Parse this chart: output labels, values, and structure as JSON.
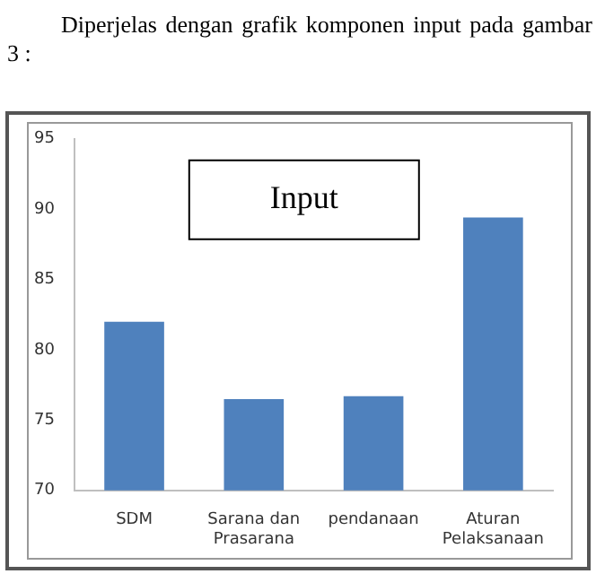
{
  "chart_data": {
    "type": "bar",
    "title": "Input",
    "annotations": [
      "Diperjelas dengan grafik komponen input pada gambar 3 :"
    ],
    "categories": [
      "SDM",
      "Sarana dan Prasarana",
      "pendanaan",
      "Aturan Pelaksanaan"
    ],
    "values": [
      82.0,
      76.5,
      76.7,
      89.4
    ],
    "color": "#4f81bd",
    "ylim": [
      70,
      95
    ],
    "yticks": [
      70,
      75,
      80,
      85,
      90,
      95
    ],
    "grid": false,
    "legend": false
  }
}
